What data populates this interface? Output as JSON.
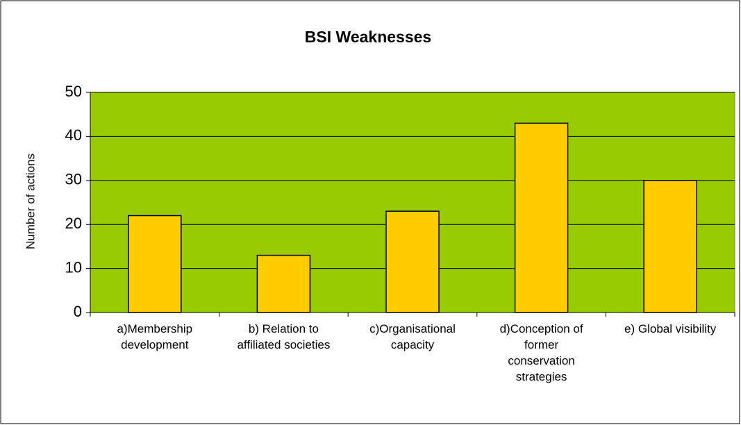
{
  "chart_data": {
    "type": "bar",
    "title": "BSI Weaknesses",
    "y_label": "Number of actions",
    "categories": [
      "a)Membership development",
      "b) Relation to affiliated societies",
      "c)Organisational capacity",
      "d)Conception of former conservation strategies",
      "e) Global visibility"
    ],
    "values": [
      22,
      13,
      23,
      43,
      30
    ],
    "color": "#ffcc00",
    "plot_background": "#99cc00",
    "ylim": [
      0,
      50
    ],
    "yticks": [
      0,
      10,
      20,
      30,
      40,
      50
    ],
    "grid": true
  }
}
